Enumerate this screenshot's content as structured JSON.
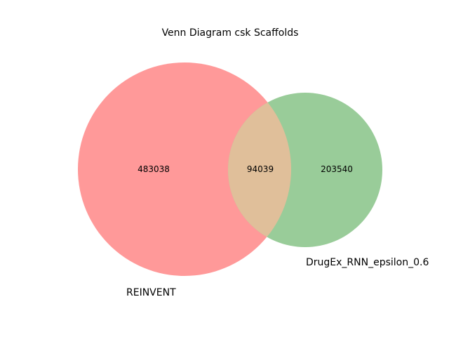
{
  "title": "Venn Diagram csk Scaffolds",
  "chart_data": {
    "type": "venn",
    "title": "Venn Diagram csk Scaffolds",
    "sets": [
      {
        "name": "REINVENT",
        "color": "#ff9999",
        "only_count": "483038"
      },
      {
        "name": "DrugEx_RNN_epsilon_0.6",
        "color": "#99cc99",
        "only_count": "203540"
      }
    ],
    "intersection": {
      "count": "94039",
      "color": "#e0bf9a"
    }
  }
}
